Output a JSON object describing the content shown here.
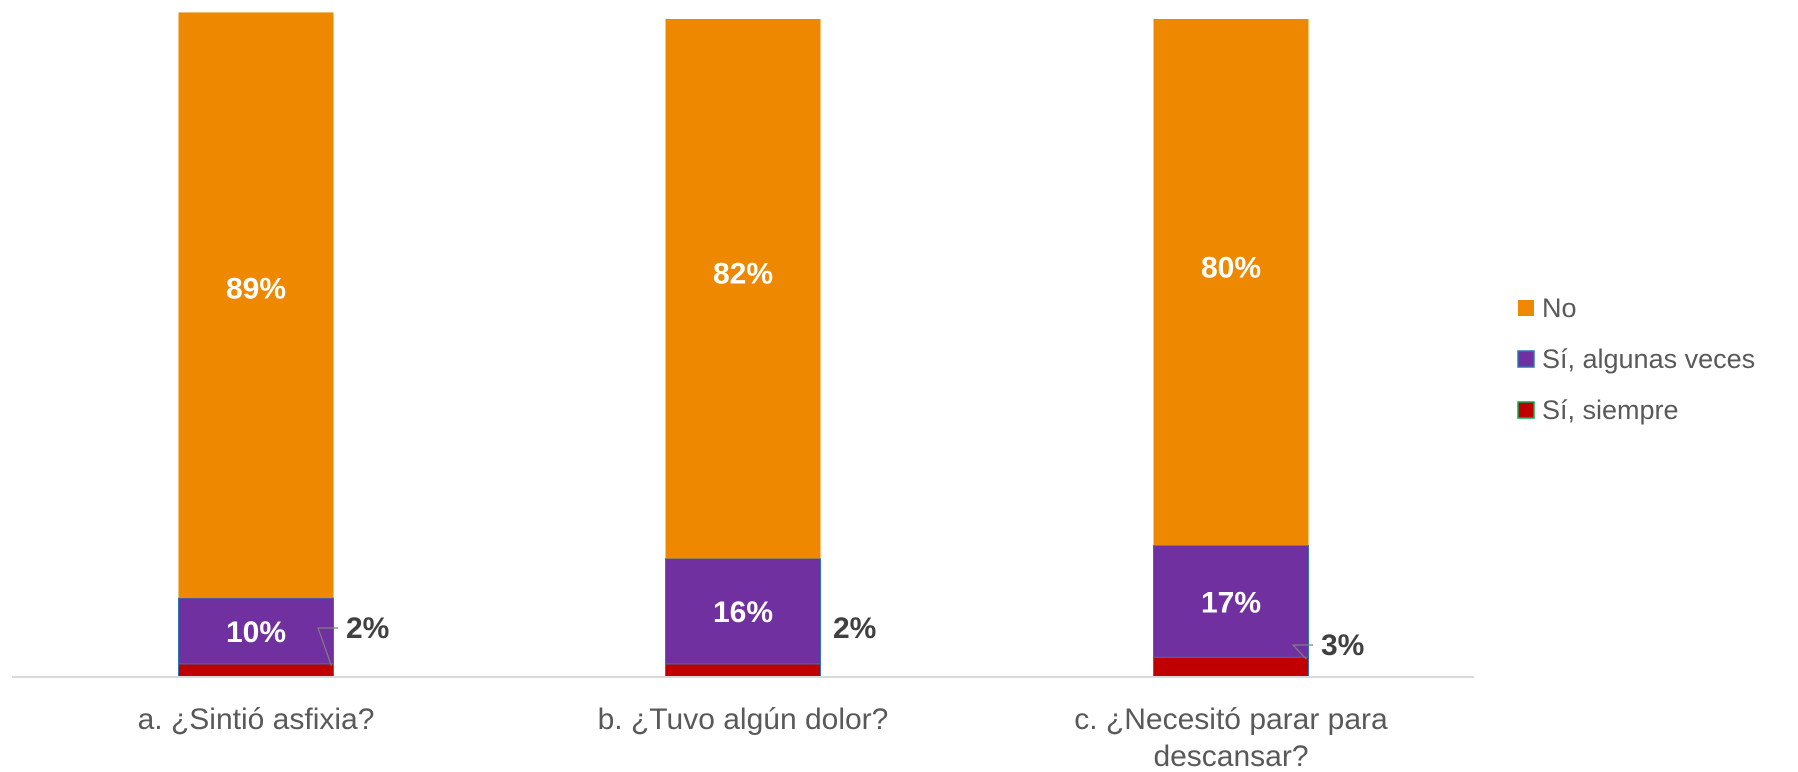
{
  "chart_data": {
    "type": "bar",
    "stacked": true,
    "categories": [
      [
        "a. ¿Sintió asfixia?"
      ],
      [
        "b. ¿Tuvo algún dolor?"
      ],
      [
        "c. ¿Necesitó parar para",
        "descansar?"
      ]
    ],
    "series": [
      {
        "name": "Sí, siempre",
        "color": "#C00000",
        "values": [
          2,
          2,
          3
        ],
        "labels": [
          "2%",
          "2%",
          "3%"
        ]
      },
      {
        "name": "Sí, algunas veces",
        "color": "#7030A0",
        "values": [
          10,
          16,
          17
        ],
        "labels": [
          "10%",
          "16%",
          "17%"
        ]
      },
      {
        "name": "No",
        "color": "#ED8800",
        "values": [
          89,
          82,
          80
        ],
        "labels": [
          "89%",
          "82%",
          "80%"
        ]
      }
    ],
    "legend": {
      "position": "right",
      "order": [
        "No",
        "Sí, algunas veces",
        "Sí, siempre"
      ]
    },
    "grid": false
  }
}
